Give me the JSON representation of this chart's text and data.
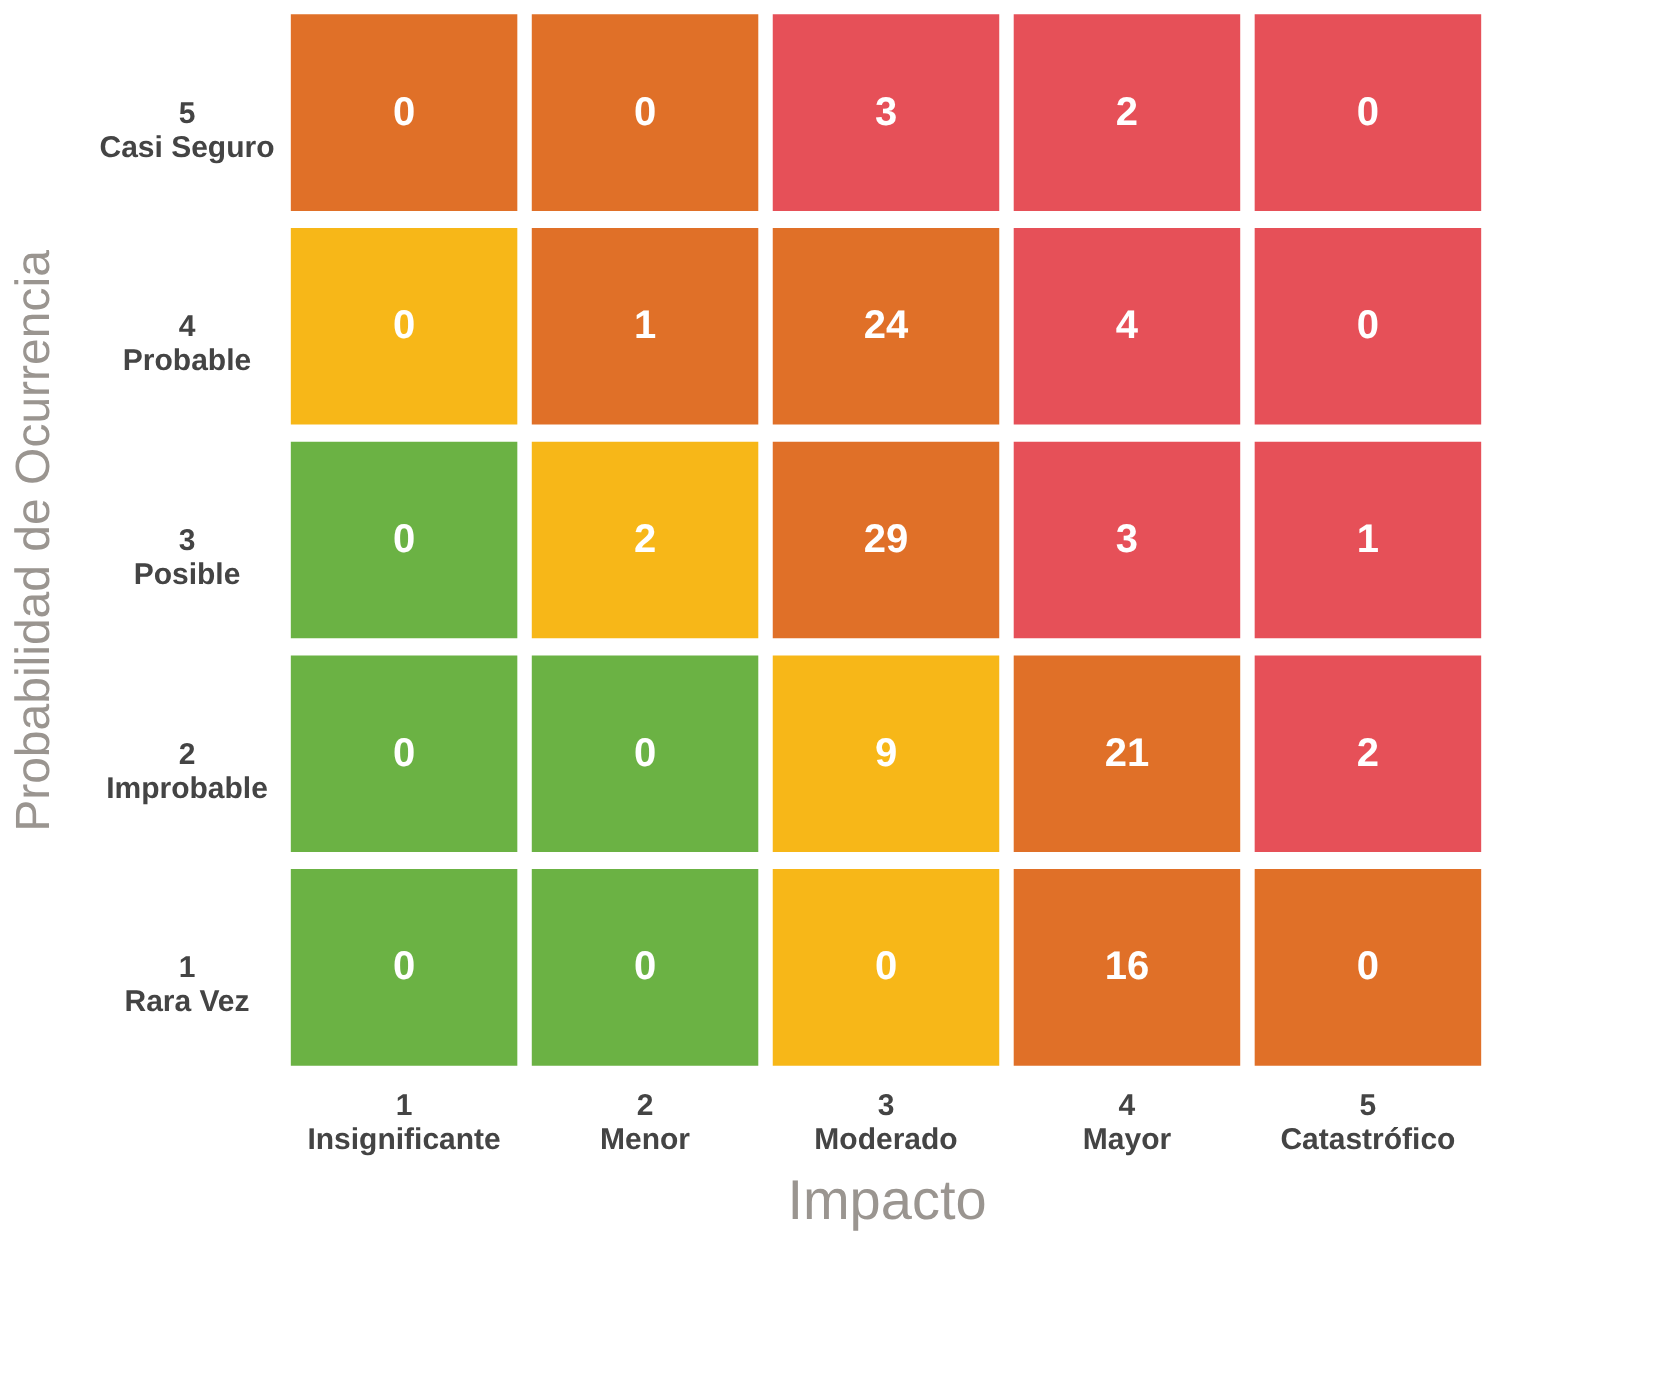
{
  "chart_data": {
    "type": "heatmap",
    "xlabel": "Impacto",
    "ylabel": "Probabilidad de Ocurrencia",
    "categories": [
      "1\nInsignificante",
      "2\nMenor",
      "3\nModerado",
      "4\nMayor",
      "5\nCatastrófico"
    ],
    "y_categories": [
      "5\nCasi Seguro",
      "4\nProbable",
      "3\nPosible",
      "2\nImprobable",
      "1\nRara Vez"
    ],
    "cells": [
      [
        0,
        0,
        3,
        2,
        0
      ],
      [
        0,
        1,
        24,
        4,
        0
      ],
      [
        0,
        2,
        29,
        3,
        1
      ],
      [
        0,
        0,
        9,
        21,
        2
      ],
      [
        0,
        0,
        0,
        16,
        0
      ]
    ],
    "colors": [
      [
        "#e07028",
        "#e07028",
        "#e65058",
        "#e65058",
        "#e65058"
      ],
      [
        "#f7b718",
        "#e07028",
        "#e07028",
        "#e65058",
        "#e65058"
      ],
      [
        "#6bb244",
        "#f7b718",
        "#e07028",
        "#e65058",
        "#e65058"
      ],
      [
        "#6bb244",
        "#6bb244",
        "#f7b718",
        "#e07028",
        "#e65058"
      ],
      [
        "#6bb244",
        "#6bb244",
        "#f7b718",
        "#e07028",
        "#e07028"
      ]
    ],
    "data_labels": true,
    "grid": false
  }
}
